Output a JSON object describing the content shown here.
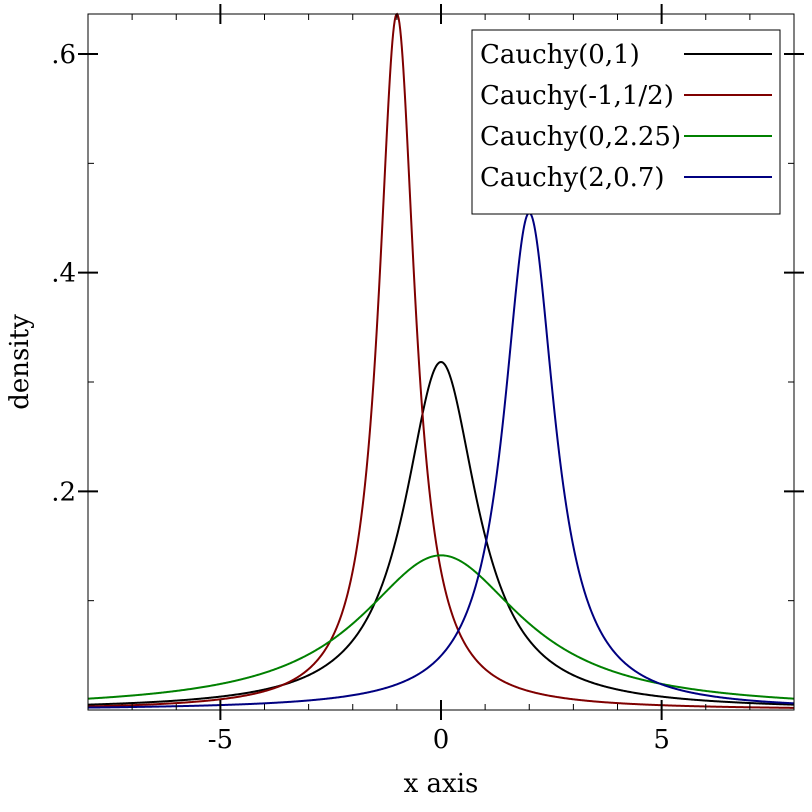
{
  "chart_data": {
    "type": "line",
    "title": "",
    "xlabel": "x axis",
    "ylabel": "density",
    "xlim": [
      -8,
      8
    ],
    "ylim": [
      0,
      0.6366
    ],
    "x_ticks": [
      {
        "value": -5,
        "label": "-5"
      },
      {
        "value": 0,
        "label": "0"
      },
      {
        "value": 5,
        "label": "5"
      }
    ],
    "y_ticks": [
      {
        "value": 0.2,
        "label": ".2"
      },
      {
        "value": 0.4,
        "label": ".4"
      },
      {
        "value": 0.6,
        "label": ".6"
      }
    ],
    "x_minor_step": 1,
    "y_minor_step": 0.1,
    "grid": false,
    "legend_position": "top-right",
    "series": [
      {
        "name": "Cauchy(0,1)",
        "location": 0,
        "scale": 1,
        "color": "#000000"
      },
      {
        "name": "Cauchy(-1,1/2)",
        "location": -1,
        "scale": 0.5,
        "color": "#7f0000"
      },
      {
        "name": "Cauchy(0,2.25)",
        "location": 0,
        "scale": 2.25,
        "color": "#008000"
      },
      {
        "name": "Cauchy(2,0.7)",
        "location": 2,
        "scale": 0.7,
        "color": "#000080"
      }
    ]
  }
}
